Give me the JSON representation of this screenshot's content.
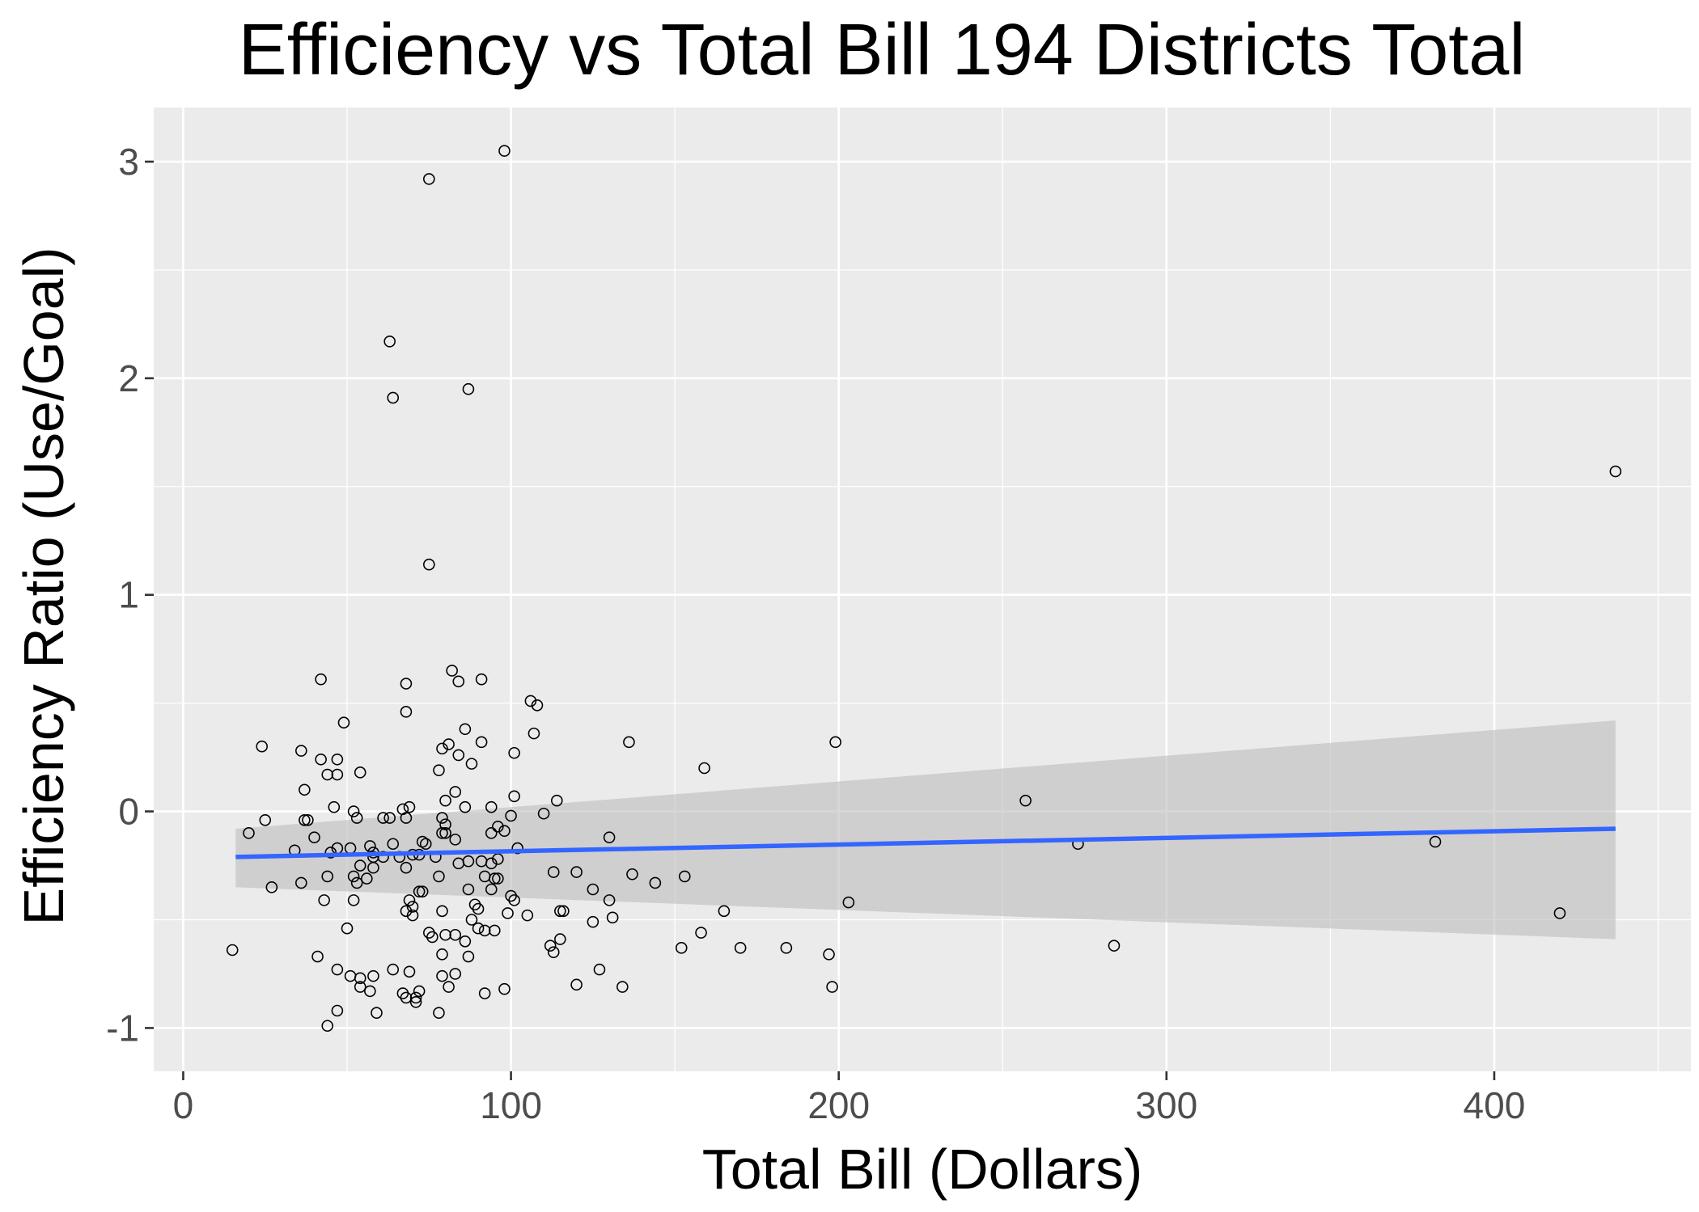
{
  "chart_data": {
    "type": "scatter",
    "title": "Efficiency vs Total Bill 194 Districts Total",
    "xlabel": "Total Bill (Dollars)",
    "ylabel": "Efficiency Ratio (Use/Goal)",
    "xlim": [
      -9,
      460
    ],
    "ylim": [
      -1.2,
      3.25
    ],
    "x_ticks": [
      0,
      100,
      200,
      300,
      400
    ],
    "x_tick_labels": [
      "0",
      "100",
      "200",
      "300",
      "400"
    ],
    "y_ticks": [
      -1,
      0,
      1,
      2,
      3
    ],
    "y_tick_labels": [
      "-1",
      "0",
      "1",
      "2",
      "3"
    ],
    "x_minor_ticks": [
      50,
      150,
      250,
      350,
      450
    ],
    "y_minor_ticks": [
      -0.5,
      0.5,
      1.5,
      2.5
    ],
    "grid": true,
    "legend": "none",
    "colors": {
      "panel_background": "#ebebeb",
      "grid": "#ffffff",
      "points": "#000000",
      "trend_line": "#3366ff",
      "confidence_band": "#bdbdbd"
    },
    "trend": {
      "method": "linear",
      "x": [
        16,
        437
      ],
      "y": [
        -0.21,
        -0.08
      ],
      "ci_upper": [
        -0.08,
        0.42
      ],
      "ci_lower": [
        -0.35,
        -0.59
      ]
    },
    "points": [
      [
        98,
        3.05
      ],
      [
        75,
        2.92
      ],
      [
        63,
        2.17
      ],
      [
        64,
        1.91
      ],
      [
        87,
        1.95
      ],
      [
        437,
        1.57
      ],
      [
        75,
        1.14
      ],
      [
        42,
        0.61
      ],
      [
        82,
        0.65
      ],
      [
        84,
        0.6
      ],
      [
        91,
        0.61
      ],
      [
        68,
        0.59
      ],
      [
        68,
        0.46
      ],
      [
        49,
        0.41
      ],
      [
        106,
        0.51
      ],
      [
        108,
        0.49
      ],
      [
        107,
        0.36
      ],
      [
        86,
        0.38
      ],
      [
        91,
        0.32
      ],
      [
        136,
        0.32
      ],
      [
        199,
        0.32
      ],
      [
        24,
        0.3
      ],
      [
        36,
        0.28
      ],
      [
        79,
        0.29
      ],
      [
        81,
        0.31
      ],
      [
        84,
        0.26
      ],
      [
        101,
        0.27
      ],
      [
        42,
        0.24
      ],
      [
        47,
        0.24
      ],
      [
        88,
        0.22
      ],
      [
        159,
        0.2
      ],
      [
        78,
        0.19
      ],
      [
        54,
        0.18
      ],
      [
        44,
        0.17
      ],
      [
        47,
        0.17
      ],
      [
        37,
        0.1
      ],
      [
        83,
        0.09
      ],
      [
        101,
        0.07
      ],
      [
        80,
        0.05
      ],
      [
        114,
        0.05
      ],
      [
        257,
        0.05
      ],
      [
        46,
        0.02
      ],
      [
        69,
        0.02
      ],
      [
        67,
        0.01
      ],
      [
        52,
        0.0
      ],
      [
        86,
        0.02
      ],
      [
        94,
        0.02
      ],
      [
        110,
        -0.01
      ],
      [
        100,
        -0.02
      ],
      [
        61,
        -0.03
      ],
      [
        63,
        -0.03
      ],
      [
        68,
        -0.03
      ],
      [
        53,
        -0.03
      ],
      [
        25,
        -0.04
      ],
      [
        37,
        -0.04
      ],
      [
        38,
        -0.04
      ],
      [
        79,
        -0.03
      ],
      [
        80,
        -0.06
      ],
      [
        96,
        -0.07
      ],
      [
        94,
        -0.1
      ],
      [
        79,
        -0.1
      ],
      [
        98,
        -0.09
      ],
      [
        80,
        -0.1
      ],
      [
        20,
        -0.1
      ],
      [
        40,
        -0.12
      ],
      [
        73,
        -0.14
      ],
      [
        74,
        -0.15
      ],
      [
        83,
        -0.13
      ],
      [
        130,
        -0.12
      ],
      [
        64,
        -0.15
      ],
      [
        57,
        -0.16
      ],
      [
        58,
        -0.19
      ],
      [
        47,
        -0.17
      ],
      [
        51,
        -0.17
      ],
      [
        45,
        -0.19
      ],
      [
        34,
        -0.18
      ],
      [
        70,
        -0.2
      ],
      [
        72,
        -0.2
      ],
      [
        77,
        -0.21
      ],
      [
        84,
        -0.24
      ],
      [
        94,
        -0.24
      ],
      [
        102,
        -0.17
      ],
      [
        273,
        -0.15
      ],
      [
        382,
        -0.14
      ],
      [
        58,
        -0.21
      ],
      [
        66,
        -0.21
      ],
      [
        54,
        -0.25
      ],
      [
        61,
        -0.21
      ],
      [
        58,
        -0.26
      ],
      [
        68,
        -0.26
      ],
      [
        87,
        -0.23
      ],
      [
        91,
        -0.23
      ],
      [
        96,
        -0.22
      ],
      [
        44,
        -0.3
      ],
      [
        52,
        -0.3
      ],
      [
        36,
        -0.33
      ],
      [
        53,
        -0.33
      ],
      [
        56,
        -0.31
      ],
      [
        78,
        -0.3
      ],
      [
        92,
        -0.3
      ],
      [
        95,
        -0.31
      ],
      [
        96,
        -0.31
      ],
      [
        113,
        -0.28
      ],
      [
        120,
        -0.28
      ],
      [
        137,
        -0.29
      ],
      [
        27,
        -0.35
      ],
      [
        72,
        -0.37
      ],
      [
        73,
        -0.37
      ],
      [
        87,
        -0.36
      ],
      [
        94,
        -0.36
      ],
      [
        100,
        -0.39
      ],
      [
        101,
        -0.41
      ],
      [
        125,
        -0.36
      ],
      [
        144,
        -0.33
      ],
      [
        153,
        -0.3
      ],
      [
        203,
        -0.42
      ],
      [
        43,
        -0.41
      ],
      [
        52,
        -0.41
      ],
      [
        69,
        -0.41
      ],
      [
        70,
        -0.44
      ],
      [
        89,
        -0.43
      ],
      [
        90,
        -0.45
      ],
      [
        130,
        -0.41
      ],
      [
        79,
        -0.46
      ],
      [
        68,
        -0.46
      ],
      [
        70,
        -0.48
      ],
      [
        88,
        -0.5
      ],
      [
        99,
        -0.47
      ],
      [
        105,
        -0.48
      ],
      [
        115,
        -0.46
      ],
      [
        116,
        -0.46
      ],
      [
        165,
        -0.46
      ],
      [
        420,
        -0.47
      ],
      [
        90,
        -0.54
      ],
      [
        92,
        -0.55
      ],
      [
        95,
        -0.55
      ],
      [
        75,
        -0.56
      ],
      [
        76,
        -0.58
      ],
      [
        80,
        -0.57
      ],
      [
        83,
        -0.57
      ],
      [
        125,
        -0.51
      ],
      [
        131,
        -0.49
      ],
      [
        50,
        -0.54
      ],
      [
        86,
        -0.6
      ],
      [
        115,
        -0.59
      ],
      [
        112,
        -0.62
      ],
      [
        113,
        -0.65
      ],
      [
        158,
        -0.56
      ],
      [
        152,
        -0.63
      ],
      [
        170,
        -0.63
      ],
      [
        184,
        -0.63
      ],
      [
        197,
        -0.66
      ],
      [
        284,
        -0.62
      ],
      [
        15,
        -0.64
      ],
      [
        41,
        -0.67
      ],
      [
        79,
        -0.66
      ],
      [
        87,
        -0.67
      ],
      [
        47,
        -0.73
      ],
      [
        64,
        -0.73
      ],
      [
        69,
        -0.74
      ],
      [
        79,
        -0.76
      ],
      [
        83,
        -0.75
      ],
      [
        51,
        -0.76
      ],
      [
        54,
        -0.77
      ],
      [
        58,
        -0.76
      ],
      [
        127,
        -0.73
      ],
      [
        54,
        -0.81
      ],
      [
        57,
        -0.83
      ],
      [
        72,
        -0.83
      ],
      [
        81,
        -0.81
      ],
      [
        92,
        -0.84
      ],
      [
        98,
        -0.82
      ],
      [
        120,
        -0.8
      ],
      [
        134,
        -0.81
      ],
      [
        198,
        -0.81
      ],
      [
        67,
        -0.84
      ],
      [
        68,
        -0.86
      ],
      [
        71,
        -0.86
      ],
      [
        71,
        -0.88
      ],
      [
        47,
        -0.92
      ],
      [
        59,
        -0.93
      ],
      [
        78,
        -0.93
      ],
      [
        44,
        -0.99
      ]
    ]
  }
}
